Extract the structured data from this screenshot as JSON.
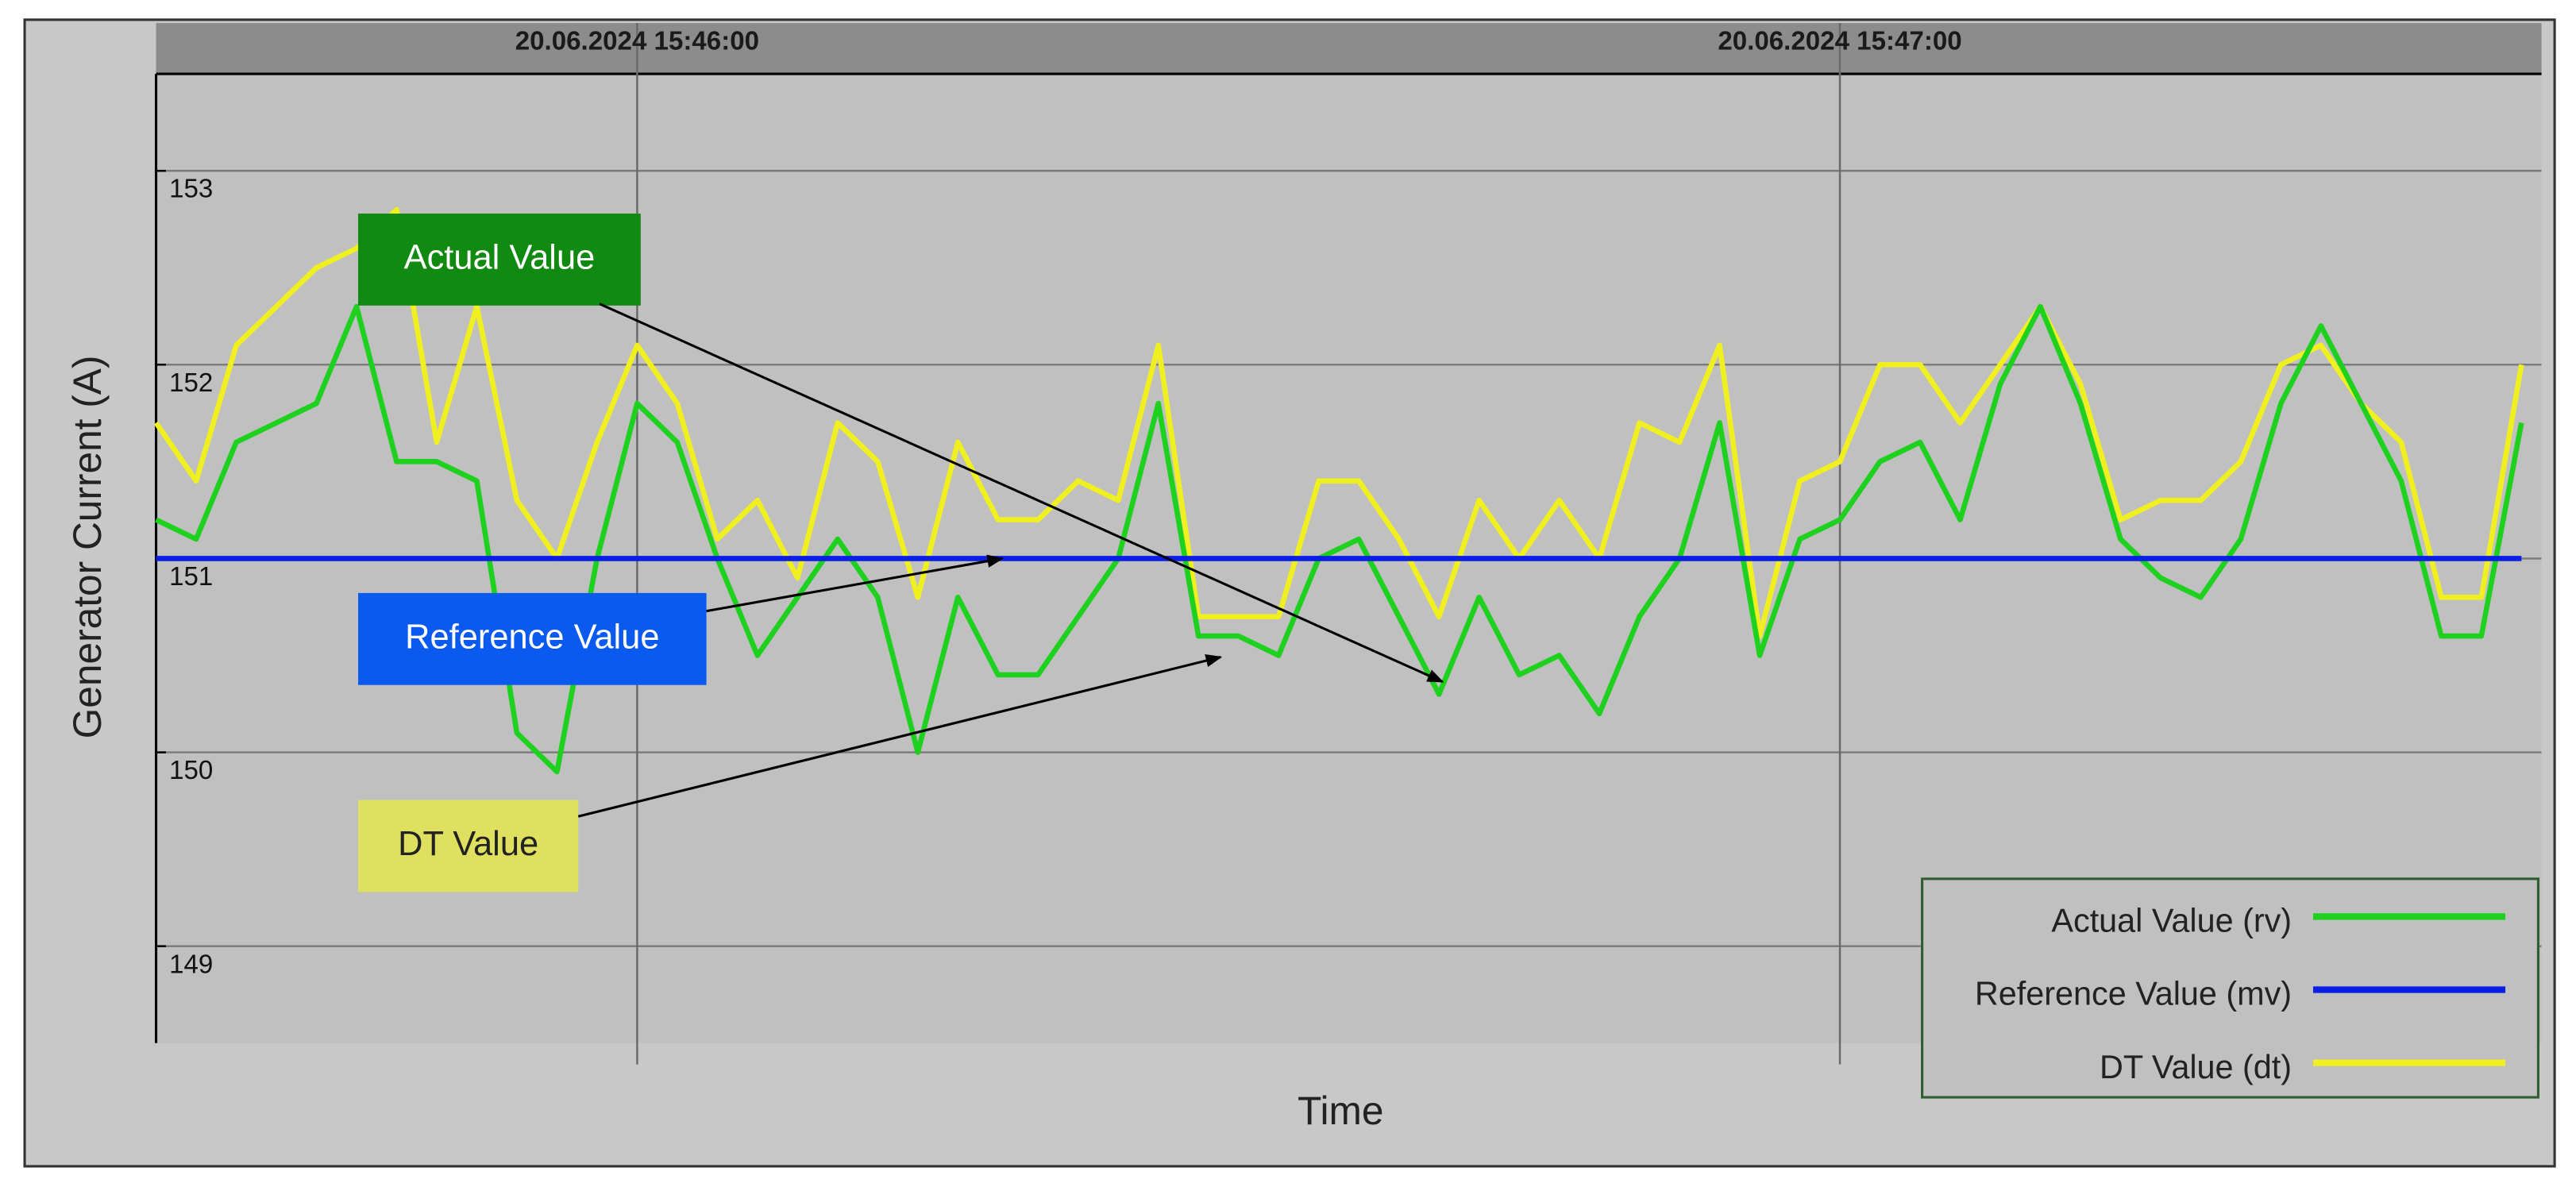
{
  "chart_data": {
    "type": "line",
    "x_label": "Time",
    "y_label": "Generator Current (A)",
    "x": [
      "20.06.2024 15:45:36",
      "20.06.2024 15:45:38",
      "20.06.2024 15:45:40",
      "20.06.2024 15:45:42",
      "20.06.2024 15:45:44",
      "20.06.2024 15:45:46",
      "20.06.2024 15:45:48",
      "20.06.2024 15:45:50",
      "20.06.2024 15:45:52",
      "20.06.2024 15:45:54",
      "20.06.2024 15:45:56",
      "20.06.2024 15:45:58",
      "20.06.2024 15:46:00",
      "20.06.2024 15:46:02",
      "20.06.2024 15:46:04",
      "20.06.2024 15:46:06",
      "20.06.2024 15:46:08",
      "20.06.2024 15:46:10",
      "20.06.2024 15:46:12",
      "20.06.2024 15:46:14",
      "20.06.2024 15:46:16",
      "20.06.2024 15:46:18",
      "20.06.2024 15:46:20",
      "20.06.2024 15:46:22",
      "20.06.2024 15:46:24",
      "20.06.2024 15:46:26",
      "20.06.2024 15:46:28",
      "20.06.2024 15:46:30",
      "20.06.2024 15:46:32",
      "20.06.2024 15:46:34",
      "20.06.2024 15:46:36",
      "20.06.2024 15:46:38",
      "20.06.2024 15:46:40",
      "20.06.2024 15:46:42",
      "20.06.2024 15:46:44",
      "20.06.2024 15:46:46",
      "20.06.2024 15:46:48",
      "20.06.2024 15:46:50",
      "20.06.2024 15:46:52",
      "20.06.2024 15:46:54",
      "20.06.2024 15:46:56",
      "20.06.2024 15:46:58",
      "20.06.2024 15:47:00",
      "20.06.2024 15:47:02",
      "20.06.2024 15:47:04",
      "20.06.2024 15:47:06",
      "20.06.2024 15:47:08",
      "20.06.2024 15:47:10",
      "20.06.2024 15:47:12",
      "20.06.2024 15:47:14",
      "20.06.2024 15:47:16",
      "20.06.2024 15:47:18",
      "20.06.2024 15:47:20",
      "20.06.2024 15:47:22",
      "20.06.2024 15:47:24",
      "20.06.2024 15:47:26",
      "20.06.2024 15:47:28",
      "20.06.2024 15:47:30",
      "20.06.2024 15:47:32",
      "20.06.2024 15:47:34"
    ],
    "series": [
      {
        "name": "Actual Value (rv)",
        "color": "#1fd11f",
        "values": [
          151.2,
          151.1,
          151.6,
          151.7,
          151.8,
          152.3,
          151.5,
          151.5,
          151.4,
          150.1,
          149.9,
          151.0,
          151.8,
          151.6,
          151.0,
          150.5,
          150.8,
          151.1,
          150.8,
          150.0,
          150.8,
          150.4,
          150.4,
          150.7,
          151.0,
          151.8,
          150.6,
          150.6,
          150.5,
          151.0,
          151.1,
          150.7,
          150.3,
          150.8,
          150.4,
          150.5,
          150.2,
          150.7,
          151.0,
          151.7,
          150.5,
          151.1,
          151.2,
          151.5,
          151.6,
          151.2,
          151.9,
          152.3,
          151.8,
          151.1,
          150.9,
          150.8,
          151.1,
          151.8,
          152.2,
          151.8,
          151.4,
          150.6,
          150.6,
          151.7
        ]
      },
      {
        "name": "Reference Value (mv)",
        "color": "#0a1ee6",
        "values": [
          151,
          151,
          151,
          151,
          151,
          151,
          151,
          151,
          151,
          151,
          151,
          151,
          151,
          151,
          151,
          151,
          151,
          151,
          151,
          151,
          151,
          151,
          151,
          151,
          151,
          151,
          151,
          151,
          151,
          151,
          151,
          151,
          151,
          151,
          151,
          151,
          151,
          151,
          151,
          151,
          151,
          151,
          151,
          151,
          151,
          151,
          151,
          151,
          151,
          151,
          151,
          151,
          151,
          151,
          151,
          151,
          151,
          151,
          151,
          151
        ]
      },
      {
        "name": "DT Value (dt)",
        "color": "#f0f020",
        "values": [
          151.7,
          151.4,
          152.1,
          152.3,
          152.5,
          152.6,
          152.8,
          151.6,
          152.3,
          151.3,
          151.0,
          151.6,
          152.1,
          151.8,
          151.1,
          151.3,
          150.9,
          151.7,
          151.5,
          150.8,
          151.6,
          151.2,
          151.2,
          151.4,
          151.3,
          152.1,
          150.7,
          150.7,
          150.7,
          151.4,
          151.4,
          151.1,
          150.7,
          151.3,
          151.0,
          151.3,
          151.0,
          151.7,
          151.6,
          152.1,
          150.6,
          151.4,
          151.5,
          152.0,
          152.0,
          151.7,
          152.0,
          152.3,
          151.9,
          151.2,
          151.3,
          151.3,
          151.5,
          152.0,
          152.1,
          151.8,
          151.6,
          150.8,
          150.8,
          152.0
        ]
      }
    ],
    "xlim": [
      "20.06.2024 15:45:36",
      "20.06.2024 15:47:35"
    ],
    "xticks": [
      "20.06.2024 15:46:00",
      "20.06.2024 15:47:00"
    ],
    "ylim": [
      148.5,
      153.5
    ],
    "yticks": [
      149,
      150,
      151,
      152,
      153
    ],
    "grid": true,
    "legend": "lower right",
    "annotations": [
      {
        "text": "Actual Value",
        "color": "#108a10"
      },
      {
        "text": "Reference Value",
        "color": "#0a5af0"
      },
      {
        "text": "DT Value",
        "color": "#e0e060"
      }
    ]
  }
}
